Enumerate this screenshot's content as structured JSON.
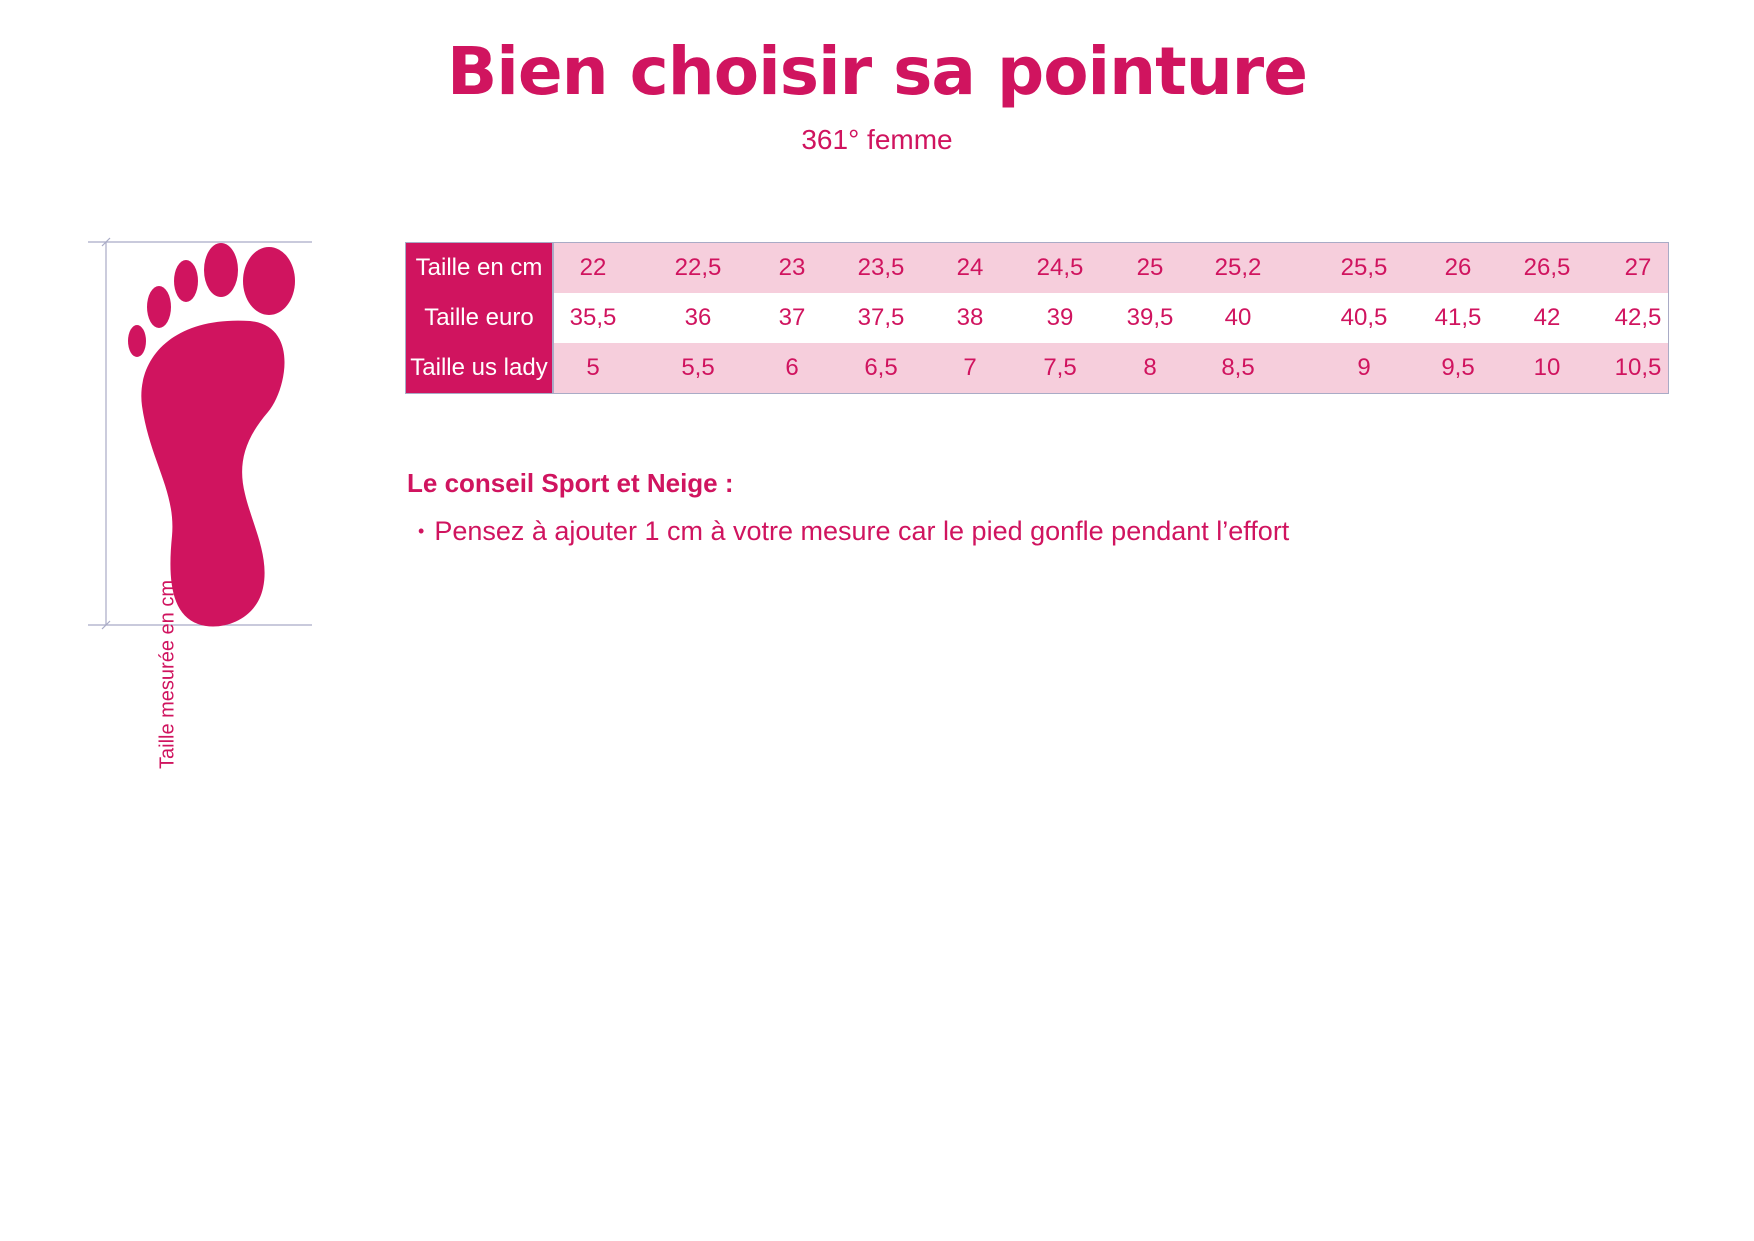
{
  "header": {
    "title": "Bien choisir sa pointure",
    "subtitle": "361° femme"
  },
  "diagram": {
    "measure_label": "Taille mesurée en cm",
    "icon": "foot-icon",
    "color": "#d0145f"
  },
  "table": {
    "rows": [
      {
        "label": "Taille en cm",
        "values": [
          "22",
          "22,5",
          "23",
          "23,5",
          "24",
          "24,5",
          "25",
          "25,2",
          "25,5",
          "26",
          "26,5",
          "27"
        ]
      },
      {
        "label": "Taille euro",
        "values": [
          "35,5",
          "36",
          "37",
          "37,5",
          "38",
          "39",
          "39,5",
          "40",
          "40,5",
          "41,5",
          "42",
          "42,5"
        ]
      },
      {
        "label": "Taille us lady",
        "values": [
          "5",
          "5,5",
          "6",
          "6,5",
          "7",
          "7,5",
          "8",
          "8,5",
          "9",
          "9,5",
          "10",
          "10,5"
        ]
      }
    ],
    "colors": {
      "header_bg": "#d0145f",
      "row_pink": "#f6cedc",
      "text": "#d0145f",
      "border": "#a9abc6"
    }
  },
  "advice": {
    "title": "Le conseil Sport et Neige :",
    "items": [
      "Pensez à ajouter 1 cm à votre mesure car le pied gonfle pendant l’effort"
    ]
  }
}
